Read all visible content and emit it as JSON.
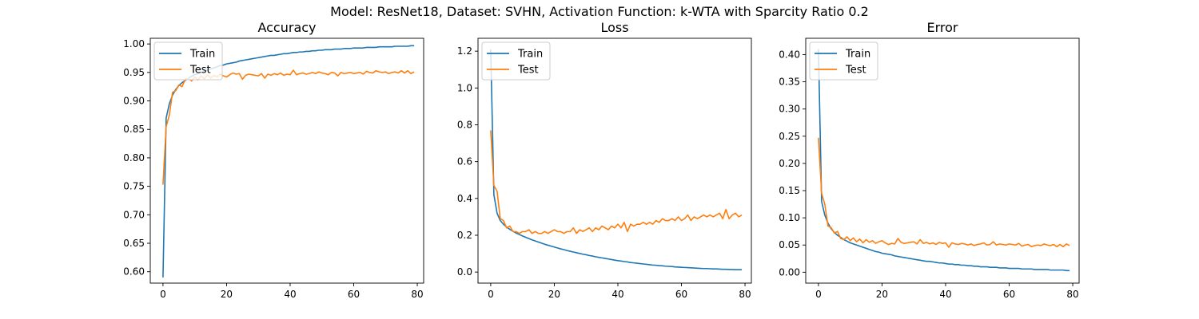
{
  "figure": {
    "title": "Model: ResNet18, Dataset: SVHN, Activation Function: k-WTA with Sparcity Ratio 0.2"
  },
  "colors": {
    "train": "#1f77b4",
    "test": "#ff7f0e"
  },
  "chart_data": [
    {
      "type": "line",
      "title": "Accuracy",
      "xlabel": "",
      "ylabel": "",
      "xlim": [
        -4,
        82
      ],
      "ylim": [
        0.58,
        1.01
      ],
      "xticks": [
        0,
        20,
        40,
        60,
        80
      ],
      "yticks": [
        0.6,
        0.65,
        0.7,
        0.75,
        0.8,
        0.85,
        0.9,
        0.95,
        1.0
      ],
      "ytick_labels": [
        "0.60",
        "0.65",
        "0.70",
        "0.75",
        "0.80",
        "0.85",
        "0.90",
        "0.95",
        "1.00"
      ],
      "legend": "upper-left",
      "series": [
        {
          "name": "Train",
          "values": [
            0.59,
            0.87,
            0.895,
            0.91,
            0.92,
            0.927,
            0.932,
            0.936,
            0.94,
            0.943,
            0.946,
            0.948,
            0.95,
            0.952,
            0.954,
            0.956,
            0.958,
            0.96,
            0.962,
            0.963,
            0.965,
            0.966,
            0.967,
            0.968,
            0.97,
            0.971,
            0.972,
            0.973,
            0.974,
            0.975,
            0.976,
            0.977,
            0.978,
            0.979,
            0.98,
            0.98,
            0.981,
            0.982,
            0.983,
            0.983,
            0.984,
            0.985,
            0.985,
            0.986,
            0.986,
            0.987,
            0.987,
            0.988,
            0.988,
            0.989,
            0.989,
            0.99,
            0.99,
            0.99,
            0.991,
            0.991,
            0.991,
            0.992,
            0.992,
            0.992,
            0.993,
            0.993,
            0.993,
            0.993,
            0.994,
            0.994,
            0.994,
            0.994,
            0.995,
            0.995,
            0.995,
            0.995,
            0.995,
            0.996,
            0.996,
            0.996,
            0.996,
            0.996,
            0.997,
            0.997
          ]
        },
        {
          "name": "Test",
          "values": [
            0.753,
            0.855,
            0.875,
            0.915,
            0.918,
            0.928,
            0.925,
            0.938,
            0.94,
            0.935,
            0.942,
            0.937,
            0.944,
            0.939,
            0.946,
            0.94,
            0.945,
            0.942,
            0.947,
            0.944,
            0.942,
            0.946,
            0.949,
            0.947,
            0.948,
            0.938,
            0.945,
            0.947,
            0.946,
            0.945,
            0.944,
            0.948,
            0.94,
            0.947,
            0.945,
            0.948,
            0.946,
            0.949,
            0.945,
            0.947,
            0.946,
            0.954,
            0.946,
            0.948,
            0.949,
            0.947,
            0.948,
            0.95,
            0.948,
            0.951,
            0.949,
            0.948,
            0.946,
            0.95,
            0.949,
            0.944,
            0.95,
            0.948,
            0.949,
            0.95,
            0.948,
            0.949,
            0.95,
            0.947,
            0.952,
            0.95,
            0.949,
            0.953,
            0.951,
            0.95,
            0.951,
            0.948,
            0.95,
            0.951,
            0.949,
            0.953,
            0.949,
            0.953,
            0.948,
            0.951
          ]
        }
      ]
    },
    {
      "type": "line",
      "title": "Loss",
      "xlabel": "",
      "ylabel": "",
      "xlim": [
        -4,
        82
      ],
      "ylim": [
        -0.06,
        1.27
      ],
      "xticks": [
        0,
        20,
        40,
        60,
        80
      ],
      "yticks": [
        0.0,
        0.2,
        0.4,
        0.6,
        0.8,
        1.0,
        1.2
      ],
      "ytick_labels": [
        "0.0",
        "0.2",
        "0.4",
        "0.6",
        "0.8",
        "1.0",
        "1.2"
      ],
      "legend": "upper-left",
      "series": [
        {
          "name": "Train",
          "values": [
            1.21,
            0.42,
            0.32,
            0.28,
            0.26,
            0.245,
            0.232,
            0.222,
            0.212,
            0.204,
            0.196,
            0.189,
            0.182,
            0.175,
            0.169,
            0.163,
            0.157,
            0.151,
            0.146,
            0.141,
            0.136,
            0.131,
            0.126,
            0.122,
            0.117,
            0.113,
            0.109,
            0.105,
            0.101,
            0.097,
            0.094,
            0.09,
            0.087,
            0.083,
            0.08,
            0.077,
            0.074,
            0.071,
            0.068,
            0.065,
            0.062,
            0.06,
            0.057,
            0.055,
            0.052,
            0.05,
            0.048,
            0.046,
            0.044,
            0.042,
            0.04,
            0.038,
            0.037,
            0.035,
            0.034,
            0.032,
            0.031,
            0.03,
            0.028,
            0.027,
            0.026,
            0.025,
            0.024,
            0.023,
            0.022,
            0.021,
            0.02,
            0.019,
            0.019,
            0.018,
            0.017,
            0.017,
            0.016,
            0.015,
            0.015,
            0.014,
            0.014,
            0.013,
            0.013,
            0.013
          ]
        },
        {
          "name": "Test",
          "values": [
            0.77,
            0.47,
            0.44,
            0.29,
            0.28,
            0.24,
            0.25,
            0.22,
            0.22,
            0.21,
            0.22,
            0.22,
            0.23,
            0.21,
            0.22,
            0.21,
            0.21,
            0.22,
            0.21,
            0.22,
            0.23,
            0.22,
            0.22,
            0.21,
            0.22,
            0.22,
            0.24,
            0.21,
            0.23,
            0.22,
            0.23,
            0.24,
            0.22,
            0.24,
            0.23,
            0.25,
            0.24,
            0.23,
            0.25,
            0.24,
            0.26,
            0.24,
            0.27,
            0.22,
            0.26,
            0.25,
            0.26,
            0.26,
            0.27,
            0.26,
            0.27,
            0.26,
            0.28,
            0.27,
            0.29,
            0.28,
            0.28,
            0.29,
            0.28,
            0.3,
            0.28,
            0.29,
            0.31,
            0.28,
            0.3,
            0.29,
            0.3,
            0.31,
            0.3,
            0.31,
            0.3,
            0.31,
            0.32,
            0.29,
            0.34,
            0.29,
            0.31,
            0.32,
            0.3,
            0.31
          ]
        }
      ]
    },
    {
      "type": "line",
      "title": "Error",
      "xlabel": "",
      "ylabel": "",
      "xlim": [
        -4,
        82
      ],
      "ylim": [
        -0.02,
        0.43
      ],
      "xticks": [
        0,
        20,
        40,
        60,
        80
      ],
      "yticks": [
        0.0,
        0.05,
        0.1,
        0.15,
        0.2,
        0.25,
        0.3,
        0.35,
        0.4
      ],
      "ytick_labels": [
        "0.00",
        "0.05",
        "0.10",
        "0.15",
        "0.20",
        "0.25",
        "0.30",
        "0.35",
        "0.40"
      ],
      "legend": "upper-left",
      "series": [
        {
          "name": "Train",
          "values": [
            0.41,
            0.13,
            0.105,
            0.09,
            0.08,
            0.073,
            0.068,
            0.064,
            0.06,
            0.057,
            0.054,
            0.052,
            0.05,
            0.048,
            0.046,
            0.044,
            0.042,
            0.04,
            0.038,
            0.037,
            0.035,
            0.034,
            0.033,
            0.032,
            0.03,
            0.029,
            0.028,
            0.027,
            0.026,
            0.025,
            0.024,
            0.023,
            0.022,
            0.021,
            0.02,
            0.02,
            0.019,
            0.018,
            0.017,
            0.017,
            0.016,
            0.015,
            0.015,
            0.014,
            0.014,
            0.013,
            0.013,
            0.012,
            0.012,
            0.011,
            0.011,
            0.01,
            0.01,
            0.01,
            0.009,
            0.009,
            0.009,
            0.008,
            0.008,
            0.008,
            0.007,
            0.007,
            0.007,
            0.007,
            0.006,
            0.006,
            0.006,
            0.006,
            0.005,
            0.005,
            0.005,
            0.005,
            0.005,
            0.004,
            0.004,
            0.004,
            0.004,
            0.004,
            0.003,
            0.003
          ]
        },
        {
          "name": "Test",
          "values": [
            0.247,
            0.145,
            0.125,
            0.085,
            0.082,
            0.072,
            0.075,
            0.062,
            0.06,
            0.065,
            0.058,
            0.063,
            0.056,
            0.061,
            0.054,
            0.06,
            0.055,
            0.058,
            0.053,
            0.056,
            0.058,
            0.054,
            0.051,
            0.053,
            0.052,
            0.062,
            0.055,
            0.053,
            0.054,
            0.055,
            0.056,
            0.052,
            0.06,
            0.053,
            0.055,
            0.052,
            0.054,
            0.051,
            0.055,
            0.053,
            0.054,
            0.046,
            0.054,
            0.052,
            0.051,
            0.053,
            0.052,
            0.05,
            0.052,
            0.049,
            0.051,
            0.052,
            0.054,
            0.05,
            0.051,
            0.056,
            0.05,
            0.052,
            0.051,
            0.05,
            0.052,
            0.051,
            0.05,
            0.053,
            0.048,
            0.05,
            0.051,
            0.047,
            0.049,
            0.05,
            0.049,
            0.052,
            0.05,
            0.049,
            0.051,
            0.047,
            0.051,
            0.047,
            0.052,
            0.049
          ]
        }
      ]
    }
  ]
}
